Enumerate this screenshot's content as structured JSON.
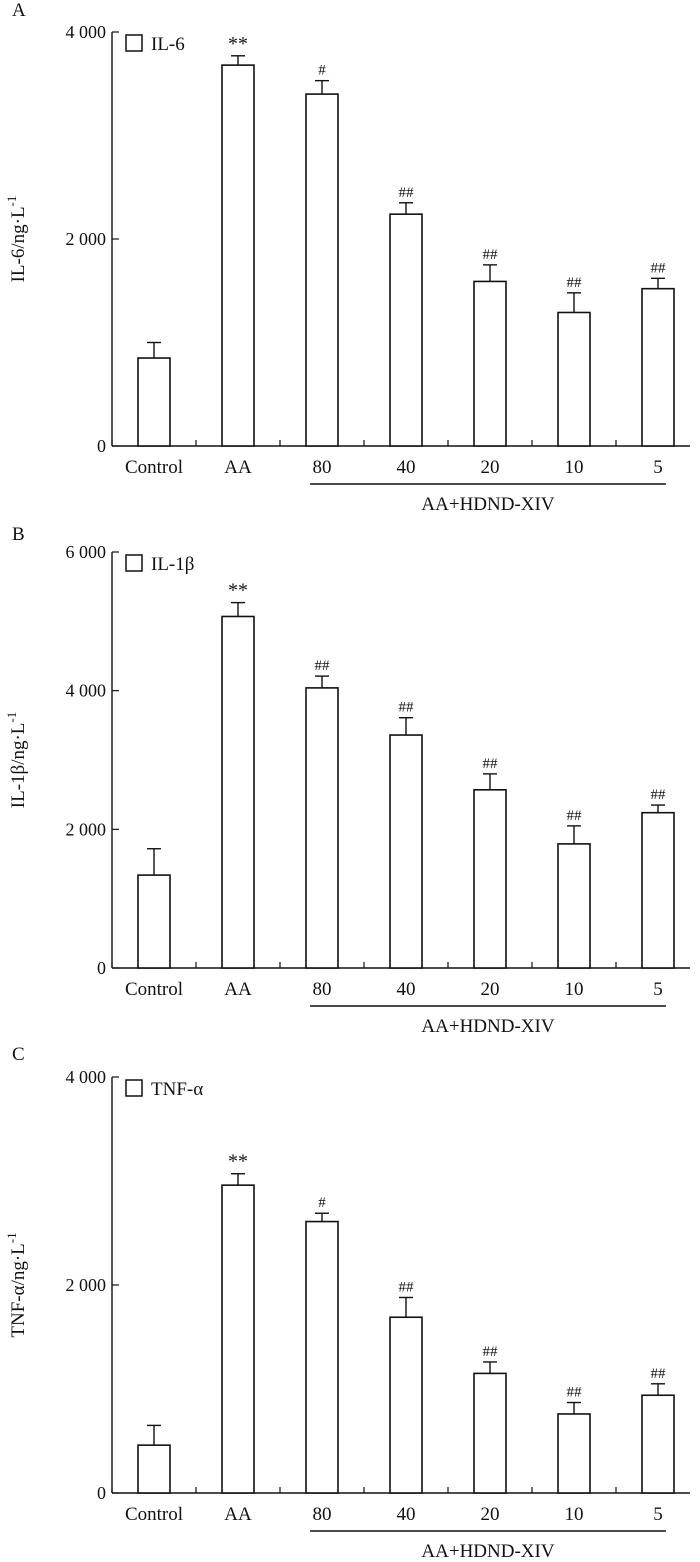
{
  "chart_data": [
    {
      "type": "bar",
      "panel_label": "A",
      "legend": "IL-6",
      "ylabel": "IL-6/ng·L",
      "ylabel_sup": "-1",
      "ylim": [
        0,
        4000
      ],
      "yticks": [
        0,
        2000,
        4000
      ],
      "ytick_labels": [
        "0",
        "2 000",
        "4 000"
      ],
      "categories": [
        "Control",
        "AA",
        "80",
        "40",
        "20",
        "10",
        "5"
      ],
      "values": [
        850,
        3680,
        3400,
        2240,
        1590,
        1290,
        1520
      ],
      "errors": [
        150,
        90,
        130,
        110,
        160,
        190,
        100
      ],
      "annotations": [
        "",
        "**",
        "#",
        "##",
        "##",
        "##",
        "##"
      ],
      "group_label": "AA+HDND-XIV"
    },
    {
      "type": "bar",
      "panel_label": "B",
      "legend": "IL-1β",
      "ylabel": "IL-1β/ng·L",
      "ylabel_sup": "-1",
      "ylim": [
        0,
        6000
      ],
      "yticks": [
        0,
        2000,
        4000,
        6000
      ],
      "ytick_labels": [
        "0",
        "2 000",
        "4 000",
        "6 000"
      ],
      "categories": [
        "Control",
        "AA",
        "80",
        "40",
        "20",
        "10",
        "5"
      ],
      "values": [
        1340,
        5070,
        4040,
        3360,
        2570,
        1790,
        2240
      ],
      "errors": [
        380,
        200,
        170,
        250,
        230,
        260,
        110
      ],
      "annotations": [
        "",
        "**",
        "##",
        "##",
        "##",
        "##",
        "##"
      ],
      "group_label": "AA+HDND-XIV"
    },
    {
      "type": "bar",
      "panel_label": "C",
      "legend": "TNF-α",
      "ylabel": "TNF-α/ng·L",
      "ylabel_sup": "-1",
      "ylim": [
        0,
        4000
      ],
      "yticks": [
        0,
        2000,
        4000
      ],
      "ytick_labels": [
        "0",
        "2 000",
        "4 000"
      ],
      "categories": [
        "Control",
        "AA",
        "80",
        "40",
        "20",
        "10",
        "5"
      ],
      "values": [
        460,
        2960,
        2610,
        1690,
        1150,
        760,
        940
      ],
      "errors": [
        190,
        110,
        80,
        190,
        110,
        110,
        110
      ],
      "annotations": [
        "",
        "**",
        "#",
        "##",
        "##",
        "##",
        "##"
      ],
      "group_label": "AA+HDND-XIV"
    }
  ]
}
